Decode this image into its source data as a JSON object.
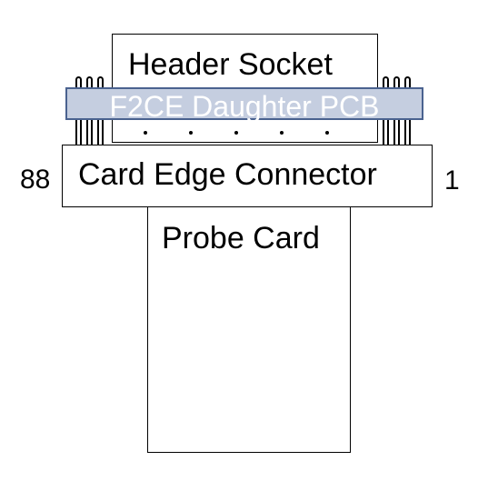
{
  "labels": {
    "header_socket": "Header Socket",
    "daughter_pcb": "F2CE Daughter PCB",
    "card_edge_connector": "Card Edge Connector",
    "probe_card": "Probe Card",
    "pin_left": "88",
    "pin_right": "1"
  },
  "colors": {
    "daughter_pcb_fill": "#c5cee0",
    "daughter_pcb_border": "#4a628f",
    "daughter_pcb_text": "#ffffff"
  }
}
